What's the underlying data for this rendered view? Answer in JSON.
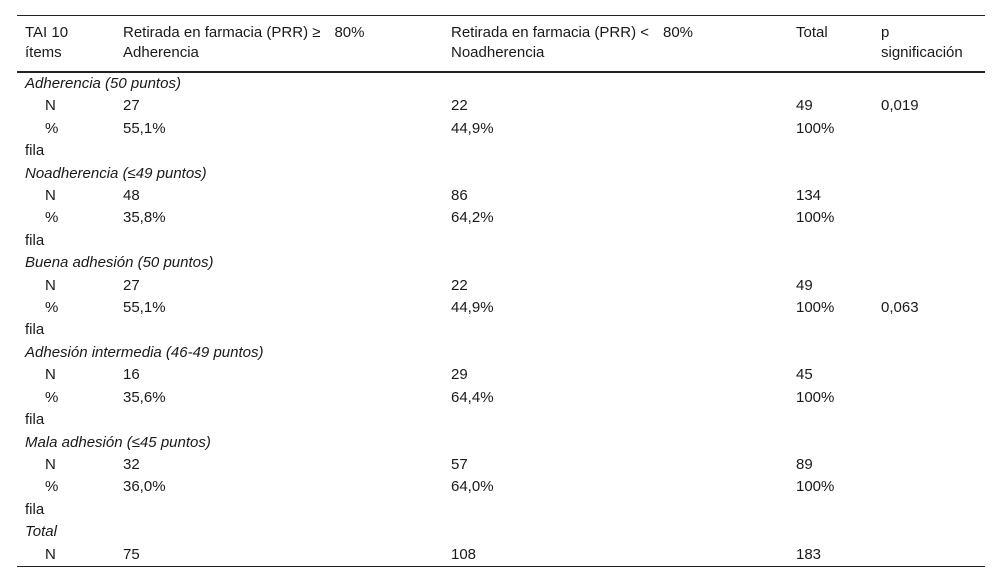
{
  "header": {
    "col1_line1": "TAI 10",
    "col1_line2": "ítems",
    "col2_line1a": "Retirada en farmacia (PRR) ≥",
    "col2_line1b": "80%",
    "col2_line2": "Adherencia",
    "col3_line1a": "Retirada en farmacia (PRR) <",
    "col3_line1b": "80%",
    "col3_line2": "Noadherencia",
    "col4": "Total",
    "col5_line1": "p",
    "col5_line2": "significación"
  },
  "labels": {
    "n": "N",
    "pct": "%",
    "fila": "fila"
  },
  "groups": [
    {
      "title_a": "Adherencia (50 puntos)",
      "title_b": "",
      "n": [
        "27",
        "22",
        "49",
        "0,019"
      ],
      "pct": [
        "55,1%",
        "44,9%",
        "100%",
        ""
      ]
    },
    {
      "title_a": "Noadherencia (≤",
      "title_b": "49 puntos)",
      "n": [
        "48",
        "86",
        "134",
        ""
      ],
      "pct": [
        "35,8%",
        "64,2%",
        "100%",
        ""
      ]
    },
    {
      "title_a": "Buena adhesión (50 puntos)",
      "title_b": "",
      "n": [
        "27",
        "22",
        "49",
        ""
      ],
      "pct": [
        "55,1%",
        "44,9%",
        "100%",
        "0,063"
      ]
    },
    {
      "title_a": "Adhesión intermedia (46-49 puntos)",
      "title_b": "",
      "n": [
        "16",
        "29",
        "45",
        ""
      ],
      "pct": [
        "35,6%",
        "64,4%",
        "100%",
        ""
      ]
    },
    {
      "title_a": "Mala adhesión (≤",
      "title_b": "45 puntos)",
      "n": [
        "32",
        "57",
        "89",
        ""
      ],
      "pct": [
        "36,0%",
        "64,0%",
        "100%",
        ""
      ]
    }
  ],
  "total": {
    "title": "Total",
    "n": [
      "75",
      "108",
      "183",
      ""
    ]
  }
}
